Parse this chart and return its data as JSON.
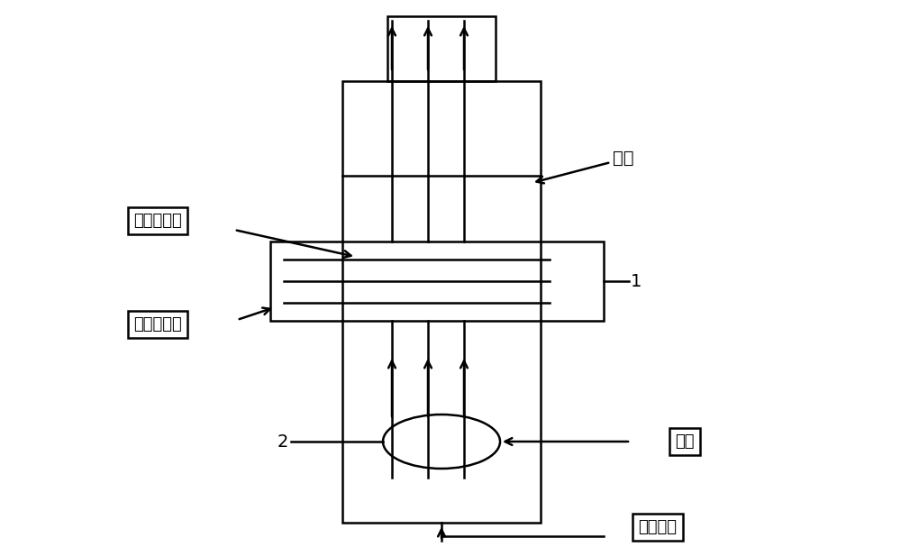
{
  "bg_color": "#ffffff",
  "line_color": "#000000",
  "labels": {
    "liquid_level": "液面",
    "gas_out": "洗洤后气出",
    "gas_in": "洗洤后气进",
    "hydrogen": "氢气",
    "silicon_tet": "四氯化硯",
    "label_1": "1",
    "label_2": "2"
  },
  "figsize": [
    10.0,
    6.17
  ],
  "dpi": 100
}
